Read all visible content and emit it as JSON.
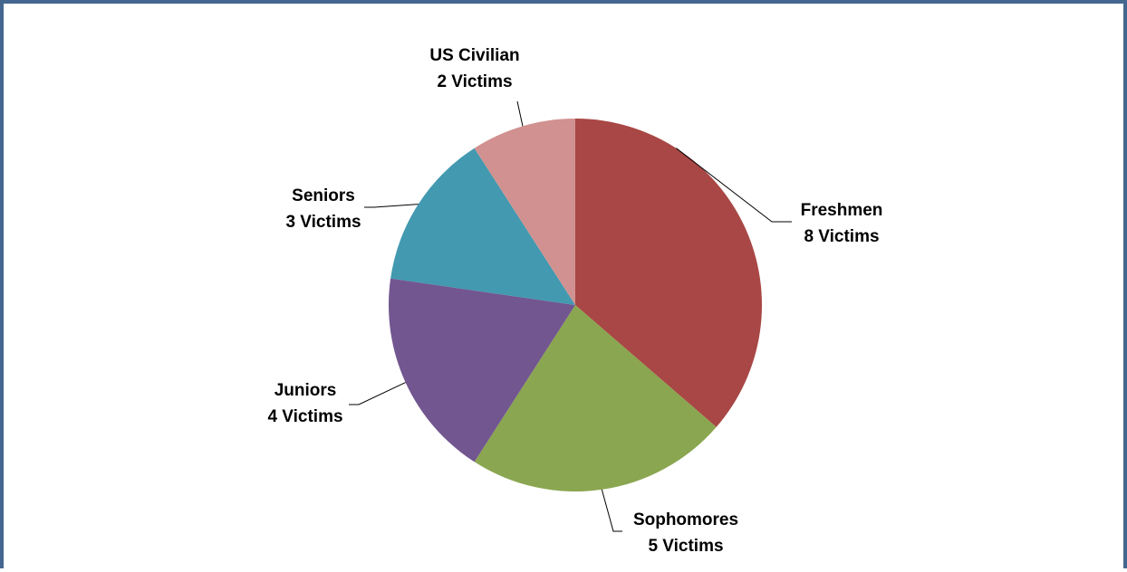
{
  "chart_data": {
    "type": "pie",
    "categories": [
      "Freshmen",
      "Sophomores",
      "Juniors",
      "Seniors",
      "US Civilian"
    ],
    "values": [
      8,
      5,
      4,
      3,
      2
    ],
    "data_labels": [
      [
        "Freshmen",
        "8 Victims"
      ],
      [
        "Sophomores",
        "5 Victims"
      ],
      [
        "Juniors",
        "4 Victims"
      ],
      [
        "Seniors",
        "3 Victims"
      ],
      [
        "US Civilian",
        "2 Victims"
      ]
    ],
    "colors": [
      "#a84745",
      "#8aa650",
      "#725690",
      "#4299b0",
      "#d19190"
    ],
    "start_angle": "12 o'clock",
    "direction": "clockwise",
    "legend": "none"
  }
}
